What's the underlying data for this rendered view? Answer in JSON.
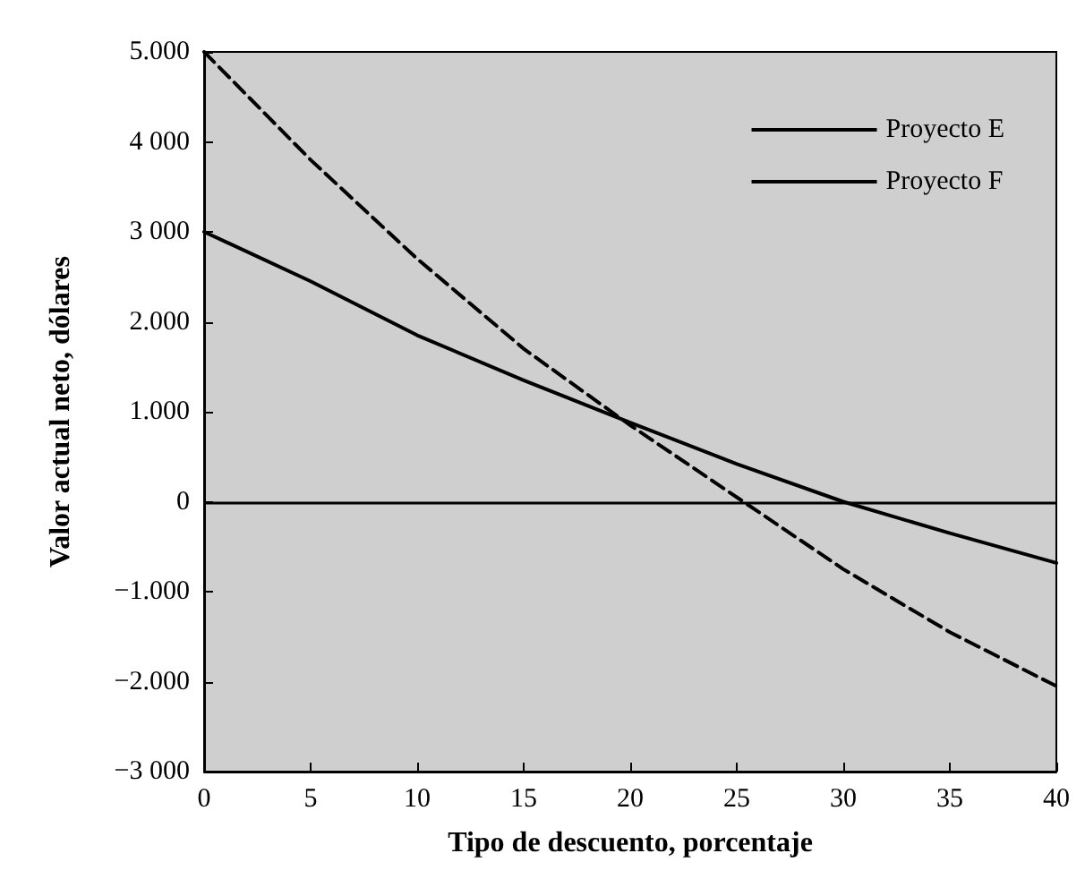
{
  "chart_data": {
    "type": "line",
    "xlabel": "Tipo de descuento, porcentaje",
    "ylabel": "Valor actual neto, dólares",
    "x": [
      0,
      5,
      10,
      15,
      20,
      25,
      30,
      35,
      40
    ],
    "series": [
      {
        "name": "Proyecto E",
        "color": "#000000",
        "line_style": "solid",
        "values": [
          3000,
          2450,
          1850,
          1350,
          880,
          420,
          0,
          -350,
          -680
        ]
      },
      {
        "name": "Proyecto F",
        "color": "#000000",
        "line_style": "dashed",
        "values": [
          5000,
          3800,
          2700,
          1700,
          850,
          50,
          -750,
          -1450,
          -2050
        ]
      }
    ],
    "xlim": [
      0,
      40
    ],
    "xticks": [
      0,
      5,
      10,
      15,
      20,
      25,
      30,
      35,
      40
    ],
    "ylim": [
      -3000,
      5000
    ],
    "yticks": [
      {
        "value": -3000,
        "label": "−3 000"
      },
      {
        "value": -2000,
        "label": "−2.000"
      },
      {
        "value": -1000,
        "label": "−1.000"
      },
      0,
      {
        "value": 1000,
        "label": "1.000"
      },
      {
        "value": 2000,
        "label": "2.000"
      },
      {
        "value": 3000,
        "label": "3 000"
      },
      {
        "value": 4000,
        "label": "4 000"
      },
      {
        "value": 5000,
        "label": "5.000"
      }
    ],
    "ref_lines": [
      {
        "axis": "y",
        "value": 0,
        "color": "#000000"
      }
    ],
    "legend": "top right",
    "grid": false,
    "marker": "none"
  }
}
